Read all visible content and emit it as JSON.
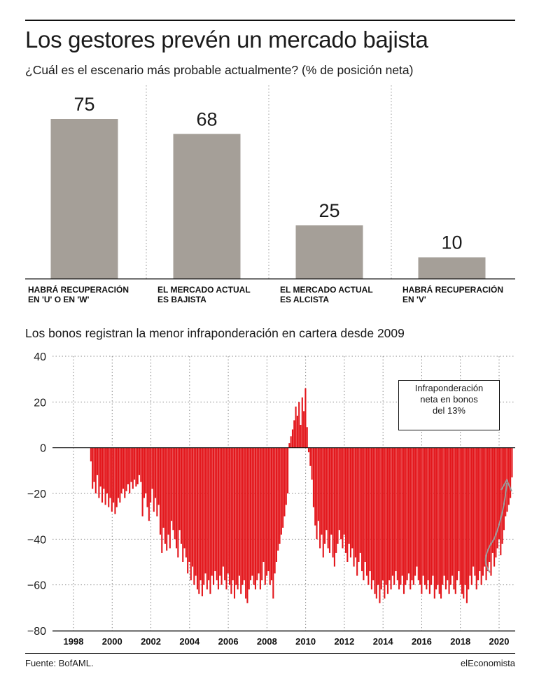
{
  "title": "Los gestores prevén un mercado bajista",
  "source": "Fuente: BofAML.",
  "brand": "elEconomista",
  "chart_data": [
    {
      "type": "bar",
      "title": "¿Cuál es el escenario más probable actualmente? (% de posición neta)",
      "categories": [
        [
          "HABRÁ RECUPERACIÓN",
          "EN 'U' O EN 'W'"
        ],
        [
          "EL MERCADO ACTUAL",
          "ES BAJISTA"
        ],
        [
          "EL MERCADO ACTUAL",
          "ES ALCISTA"
        ],
        [
          "HABRÁ RECUPERACIÓN",
          "EN 'V'"
        ]
      ],
      "values": [
        75,
        68,
        25,
        10
      ],
      "value_labels": [
        "75",
        "68",
        "25",
        "10"
      ],
      "ylim": [
        0,
        80
      ],
      "bar_color": "#a59f98"
    },
    {
      "type": "bar",
      "title": "Los bonos registran la menor infraponderación en cartera desde 2009",
      "x_ticks": [
        "1998",
        "2000",
        "2002",
        "2004",
        "2006",
        "2008",
        "2010",
        "2012",
        "2014",
        "2016",
        "2018",
        "2020"
      ],
      "y_ticks": [
        "40",
        "20",
        "0",
        "−20",
        "−40",
        "−60",
        "−80"
      ],
      "ylim": [
        -80,
        40
      ],
      "xlim": [
        1998,
        2020.8
      ],
      "bar_color": "#e3161b",
      "series_start": 1998.9,
      "series_step": 0.0834,
      "values": [
        -6,
        -18,
        -15,
        -20,
        -12,
        -22,
        -17,
        -24,
        -18,
        -25,
        -20,
        -26,
        -22,
        -28,
        -24,
        -29,
        -26,
        -22,
        -24,
        -20,
        -18,
        -22,
        -19,
        -16,
        -20,
        -15,
        -18,
        -14,
        -17,
        -16,
        -12,
        -15,
        -30,
        -22,
        -20,
        -26,
        -32,
        -24,
        -18,
        -28,
        -22,
        -30,
        -25,
        -38,
        -46,
        -35,
        -42,
        -45,
        -38,
        -44,
        -32,
        -36,
        -40,
        -44,
        -48,
        -36,
        -42,
        -50,
        -44,
        -48,
        -55,
        -50,
        -58,
        -52,
        -60,
        -56,
        -62,
        -64,
        -58,
        -65,
        -60,
        -55,
        -62,
        -58,
        -64,
        -56,
        -60,
        -54,
        -58,
        -62,
        -56,
        -60,
        -52,
        -58,
        -62,
        -55,
        -60,
        -64,
        -58,
        -66,
        -60,
        -62,
        -56,
        -64,
        -60,
        -58,
        -66,
        -68,
        -62,
        -58,
        -56,
        -60,
        -62,
        -58,
        -55,
        -62,
        -58,
        -50,
        -60,
        -56,
        -54,
        -60,
        -58,
        -66,
        -55,
        -50,
        -45,
        -42,
        -38,
        -35,
        -30,
        -25,
        -20,
        2,
        5,
        8,
        12,
        18,
        14,
        20,
        10,
        22,
        16,
        26,
        9,
        -2,
        -8,
        -14,
        -26,
        -34,
        -40,
        -32,
        -44,
        -38,
        -48,
        -42,
        -36,
        -44,
        -46,
        -38,
        -48,
        -52,
        -46,
        -42,
        -36,
        -40,
        -44,
        -38,
        -46,
        -50,
        -42,
        -48,
        -44,
        -52,
        -48,
        -56,
        -50,
        -46,
        -54,
        -58,
        -50,
        -56,
        -60,
        -54,
        -62,
        -58,
        -64,
        -66,
        -60,
        -68,
        -62,
        -58,
        -66,
        -60,
        -64,
        -58,
        -62,
        -56,
        -60,
        -54,
        -58,
        -62,
        -60,
        -56,
        -64,
        -60,
        -58,
        -55,
        -62,
        -58,
        -60,
        -56,
        -52,
        -58,
        -60,
        -64,
        -56,
        -60,
        -62,
        -58,
        -64,
        -60,
        -56,
        -66,
        -62,
        -60,
        -64,
        -66,
        -60,
        -56,
        -62,
        -58,
        -64,
        -60,
        -56,
        -62,
        -64,
        -58,
        -54,
        -60,
        -64,
        -66,
        -60,
        -68,
        -62,
        -56,
        -60,
        -52,
        -56,
        -62,
        -58,
        -54,
        -60,
        -56,
        -52,
        -58,
        -54,
        -50,
        -56,
        -46,
        -52,
        -48,
        -44,
        -40,
        -47,
        -42,
        -36,
        -30,
        -28,
        -25,
        -22,
        -13
      ]
    }
  ],
  "annotation": [
    "Infraponderación",
    "neta en bonos",
    "del 13%"
  ]
}
